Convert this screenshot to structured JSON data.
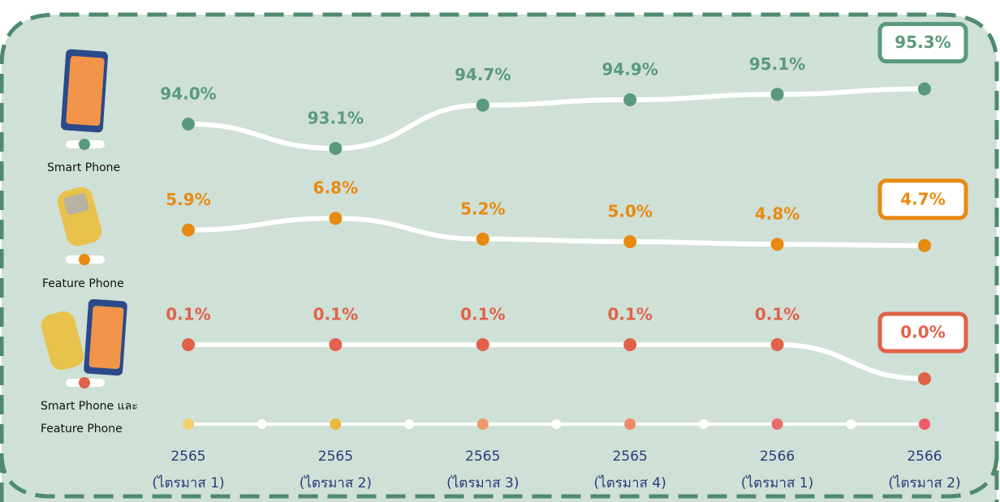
{
  "chart_data": {
    "type": "line",
    "categories": [
      [
        "2565",
        "(ไตรมาส 1)"
      ],
      [
        "2565",
        "(ไตรมาส 2)"
      ],
      [
        "2565",
        "(ไตรมาส 3)"
      ],
      [
        "2565",
        "(ไตรมาส 4)"
      ],
      [
        "2566",
        "(ไตรมาส 1)"
      ],
      [
        "2566",
        "(ไตรมาส 2)"
      ]
    ],
    "series": [
      {
        "name": "Smart Phone",
        "color": "#5a9a7c",
        "ylim": [
          92.8,
          95.5
        ],
        "values": [
          94.0,
          93.1,
          94.7,
          94.9,
          95.1,
          95.3
        ],
        "value_labels": [
          "94.0%",
          "93.1%",
          "94.7%",
          "94.9%",
          "95.1%",
          "95.3%"
        ]
      },
      {
        "name": "Feature Phone",
        "color": "#e88a12",
        "ylim": [
          4,
          8
        ],
        "values": [
          5.9,
          6.8,
          5.2,
          5.0,
          4.8,
          4.7
        ],
        "value_labels": [
          "5.9%",
          "6.8%",
          "5.2%",
          "5.0%",
          "4.8%",
          "4.7%"
        ]
      },
      {
        "name": "Smart Phone และ Feature Phone",
        "color": "#e0624a",
        "ylim": [
          0,
          0.1
        ],
        "values": [
          0.1,
          0.1,
          0.1,
          0.1,
          0.1,
          0.0
        ],
        "value_labels": [
          "0.1%",
          "0.1%",
          "0.1%",
          "0.1%",
          "0.1%",
          "0.0%"
        ]
      }
    ]
  }
}
